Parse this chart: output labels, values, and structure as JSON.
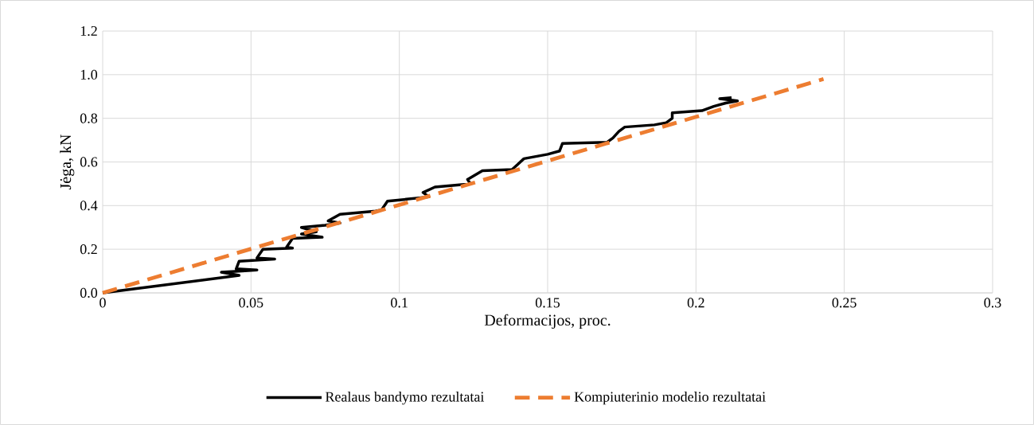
{
  "chart_data": {
    "type": "line",
    "xlabel": "Deformacijos, proc.",
    "ylabel": "Jėga, kN",
    "xlim": [
      0,
      0.3
    ],
    "xticks": [
      0,
      0.05,
      0.1,
      0.15,
      0.2,
      0.25,
      0.3
    ],
    "ylim": [
      0,
      1.2
    ],
    "yticks": [
      {
        "value": 0,
        "label": "0.0"
      },
      {
        "value": 0.2,
        "label": "0.2"
      },
      {
        "value": 0.4,
        "label": "0.4"
      },
      {
        "value": 0.6,
        "label": "0.6"
      },
      {
        "value": 0.8,
        "label": "0.8"
      },
      {
        "value": 1.0,
        "label": "1.0"
      },
      {
        "value": 1.2,
        "label": "1.2"
      }
    ],
    "grid": true,
    "legend": "bottom",
    "marker": "none",
    "series": [
      {
        "name": "Realaus bandymo rezultatai",
        "color": "#000000",
        "line_style": "solid",
        "x": [
          0,
          0.046,
          0.04,
          0.047,
          0.052,
          0.045,
          0.046,
          0.058,
          0.052,
          0.054,
          0.064,
          0.062,
          0.064,
          0.074,
          0.067,
          0.072,
          0.067,
          0.075,
          0.08,
          0.076,
          0.08,
          0.092,
          0.094,
          0.096,
          0.11,
          0.108,
          0.112,
          0.124,
          0.123,
          0.128,
          0.138,
          0.14,
          0.142,
          0.15,
          0.154,
          0.155,
          0.17,
          0.172,
          0.174,
          0.176,
          0.186,
          0.19,
          0.192,
          0.192,
          0.202,
          0.206,
          0.21,
          0.214,
          0.208,
          0.212
        ],
        "values": [
          0,
          0.08,
          0.095,
          0.1,
          0.105,
          0.11,
          0.145,
          0.155,
          0.16,
          0.2,
          0.205,
          0.21,
          0.25,
          0.255,
          0.27,
          0.28,
          0.3,
          0.31,
          0.32,
          0.33,
          0.36,
          0.375,
          0.38,
          0.42,
          0.44,
          0.46,
          0.485,
          0.5,
          0.52,
          0.56,
          0.565,
          0.59,
          0.615,
          0.635,
          0.65,
          0.685,
          0.69,
          0.71,
          0.74,
          0.76,
          0.77,
          0.78,
          0.8,
          0.825,
          0.835,
          0.855,
          0.87,
          0.88,
          0.89,
          0.895
        ]
      },
      {
        "name": "Kompiuterinio modelio rezultatai",
        "color": "#ed7d31",
        "line_style": "dashed",
        "x": [
          0,
          0.243
        ],
        "values": [
          0,
          0.98
        ]
      }
    ]
  }
}
